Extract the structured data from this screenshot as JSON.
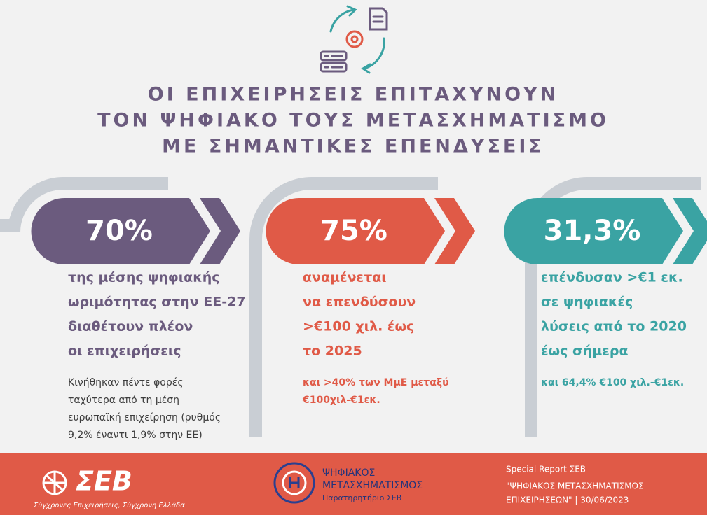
{
  "icon_alt": null,
  "title": [
    "ΟΙ ΕΠΙΧΕΙΡΗΣΕΙΣ ΕΠΙΤΑΧΥΝΟΥΝ",
    "ΤΟΝ ΨΗΦΙΑΚΟ ΤΟΥΣ ΜΕΤΑΣΧΗΜΑΤΙΣΜΟ",
    "ΜΕ ΣΗΜΑΝΤΙΚΕΣ ΕΠΕΝΔΥΣΕΙΣ"
  ],
  "cards": [
    {
      "value": "70%",
      "main": [
        "της μέσης ψηφιακής",
        "ωριμότητας στην ΕΕ-27",
        "διαθέτουν πλέον",
        "οι επιχειρήσεις"
      ],
      "note": [
        "Κινήθηκαν πέντε φορές",
        "ταχύτερα από τη μέση",
        "ευρωπαϊκή επιχείρηση (ρυθμός",
        "9,2% έναντι 1,9% στην ΕΕ)"
      ]
    },
    {
      "value": "75%",
      "main": [
        "αναμένεται",
        "να επενδύσουν",
        ">€100 χιλ. έως",
        "το 2025"
      ],
      "note": [
        "και >40% των ΜμΕ μεταξύ",
        "€100χιλ-€1εκ."
      ]
    },
    {
      "value": "31,3%",
      "main": [
        "επένδυσαν >€1 εκ.",
        "σε ψηφιακές",
        "λύσεις από το 2020",
        "έως σήμερα"
      ],
      "note": [
        "και 64,4% €100 χιλ.-€1εκ."
      ]
    }
  ],
  "footer": {
    "logo": "ΣΕΒ",
    "tagline": "Σύγχρονες Επιχειρήσεις, Σύγχρονη Ελλάδα",
    "center": [
      "ΨΗΦΙΑΚΟΣ",
      "ΜΕΤΑΣΧΗΜΑΤΙΣΜΟΣ",
      "Παρατηρητήριο ΣΕΒ"
    ],
    "right": [
      "Special Report ΣΕΒ",
      "\"ΨΗΦΙΑΚΟΣ ΜΕΤΑΣΧΗΜΑΤΙΣΜΟΣ",
      "ΕΠΙΧΕΙΡΗΣΕΩΝ\"  |  30/06/2023"
    ]
  }
}
